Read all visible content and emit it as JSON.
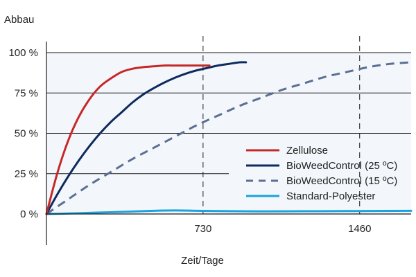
{
  "chart_data": {
    "type": "line",
    "ylabel": "Abbau",
    "xlabel": "Zeit/Tage",
    "x_ticks": [
      {
        "value": 730,
        "label": "730"
      },
      {
        "value": 1460,
        "label": "1460"
      }
    ],
    "y_ticks": [
      {
        "value": 0,
        "label": "0 %"
      },
      {
        "value": 25,
        "label": "25 %"
      },
      {
        "value": 50,
        "label": "50 %"
      },
      {
        "value": 75,
        "label": "75 %"
      },
      {
        "value": 100,
        "label": "100 %"
      }
    ],
    "xlim": [
      0,
      1700
    ],
    "ylim": [
      0,
      100
    ],
    "grid": "horizontal",
    "reference_lines_x": [
      730,
      1460
    ],
    "legend_position": "lower-right",
    "series": [
      {
        "name": "Zellulose",
        "color": "#c62828",
        "style": "solid",
        "x": [
          0,
          50,
          100,
          150,
          200,
          250,
          300,
          350,
          400,
          450,
          500,
          550,
          600,
          650,
          700,
          760
        ],
        "y": [
          0,
          25,
          45,
          60,
          71,
          79,
          84,
          88,
          90,
          91,
          91.5,
          92,
          92,
          92,
          92,
          92
        ]
      },
      {
        "name": "BioWeedControl (25 ºC)",
        "color": "#0d2a5e",
        "style": "solid",
        "x": [
          0,
          50,
          100,
          150,
          200,
          250,
          300,
          350,
          400,
          450,
          500,
          550,
          600,
          650,
          700,
          750,
          800,
          850,
          900,
          930
        ],
        "y": [
          0,
          12,
          23,
          33,
          42,
          50,
          57,
          63,
          69,
          74,
          78,
          81.5,
          84.5,
          87,
          89,
          90.5,
          92,
          93,
          94,
          94
        ]
      },
      {
        "name": "BioWeedControl (15 ºC)",
        "color": "#5a6f93",
        "style": "dashed",
        "x": [
          0,
          100,
          200,
          300,
          400,
          500,
          600,
          700,
          800,
          900,
          1000,
          1100,
          1200,
          1300,
          1400,
          1500,
          1600,
          1700
        ],
        "y": [
          0,
          9,
          18,
          26,
          34,
          41,
          48,
          55,
          61,
          67,
          72,
          77,
          81,
          85,
          88,
          91,
          93,
          94
        ]
      },
      {
        "name": "Standard-Polyester",
        "color": "#1aa3dc",
        "style": "solid",
        "x": [
          0,
          100,
          200,
          300,
          400,
          500,
          600,
          700,
          800,
          1000,
          1200,
          1400,
          1700
        ],
        "y": [
          0,
          0.3,
          0.7,
          1.1,
          1.5,
          2.0,
          2.2,
          2.0,
          1.8,
          1.6,
          1.7,
          1.8,
          2.0
        ]
      }
    ]
  }
}
